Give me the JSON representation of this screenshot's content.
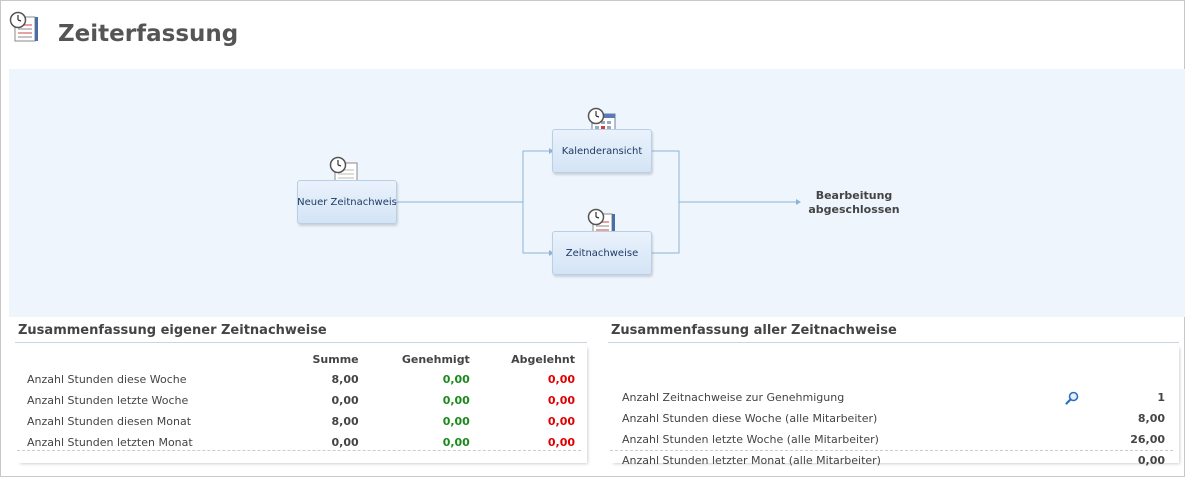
{
  "page": {
    "title": "Zeiterfassung"
  },
  "workflow": {
    "nodes": {
      "new_timesheet": "Neuer Zeitnachweis",
      "calendar_view": "Kalenderansicht",
      "timesheets": "Zeitnachweise"
    },
    "end_label_line1": "Bearbeitung",
    "end_label_line2": "abgeschlossen"
  },
  "own_summary": {
    "title": "Zusammenfassung eigener Zeitnachweise",
    "columns": [
      "Summe",
      "Genehmigt",
      "Abgelehnt"
    ],
    "rows": [
      {
        "label": "Anzahl Stunden diese Woche",
        "sum": "8,00",
        "approved": "0,00",
        "rejected": "0,00"
      },
      {
        "label": "Anzahl Stunden letzte Woche",
        "sum": "0,00",
        "approved": "0,00",
        "rejected": "0,00"
      },
      {
        "label": "Anzahl Stunden diesen Monat",
        "sum": "8,00",
        "approved": "0,00",
        "rejected": "0,00"
      },
      {
        "label": "Anzahl Stunden letzten Monat",
        "sum": "0,00",
        "approved": "0,00",
        "rejected": "0,00"
      }
    ]
  },
  "all_summary": {
    "title": "Zusammenfassung aller Zeitnachweise",
    "rows": [
      {
        "label": "Anzahl Zeitnachweise zur Genehmigung",
        "value": "1"
      },
      {
        "label": "Anzahl Stunden diese Woche (alle Mitarbeiter)",
        "value": "8,00"
      },
      {
        "label": "Anzahl Stunden letzte Woche (alle Mitarbeiter)",
        "value": "26,00"
      },
      {
        "label": "Anzahl Stunden letzter Monat (alle Mitarbeiter)",
        "value": "0,00"
      }
    ]
  },
  "colors": {
    "approved": "#1a8a1a",
    "rejected": "#e00000",
    "flow_bg": "#eef5fd"
  },
  "icons": {
    "header": "timesheet-clock-icon",
    "zoom": "magnifier-icon"
  }
}
